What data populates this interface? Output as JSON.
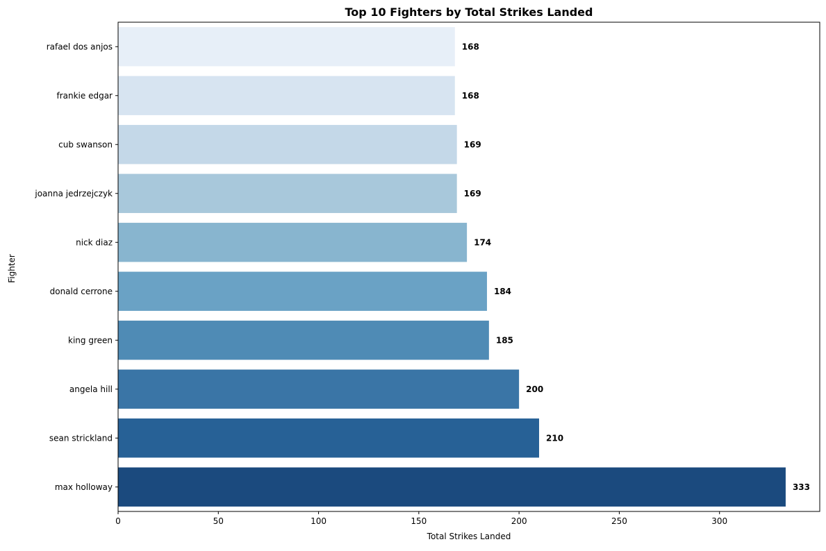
{
  "chart_data": {
    "type": "bar",
    "orientation": "horizontal",
    "title": "Top 10 Fighters by Total Strikes Landed",
    "xlabel": "Total Strikes Landed",
    "ylabel": "Fighter",
    "categories": [
      "rafael dos anjos",
      "frankie edgar",
      "cub swanson",
      "joanna jedrzejczyk",
      "nick diaz",
      "donald cerrone",
      "king green",
      "angela hill",
      "sean strickland",
      "max holloway"
    ],
    "values": [
      168,
      168,
      169,
      169,
      174,
      184,
      185,
      200,
      210,
      333
    ],
    "value_labels": [
      "168",
      "168",
      "169",
      "169",
      "174",
      "184",
      "185",
      "200",
      "210",
      "333"
    ],
    "bar_colors": [
      "#e7eff8",
      "#d7e4f1",
      "#c4d8e8",
      "#a8c8db",
      "#88b5cf",
      "#6aa2c5",
      "#4f8bb5",
      "#3a75a6",
      "#276196",
      "#1b4a7e"
    ],
    "xlim": [
      0,
      350
    ],
    "xticks": [
      0,
      50,
      100,
      150,
      200,
      250,
      300
    ],
    "xtick_labels": [
      "0",
      "50",
      "100",
      "150",
      "200",
      "250",
      "300"
    ],
    "grid": false,
    "legend": "none"
  }
}
